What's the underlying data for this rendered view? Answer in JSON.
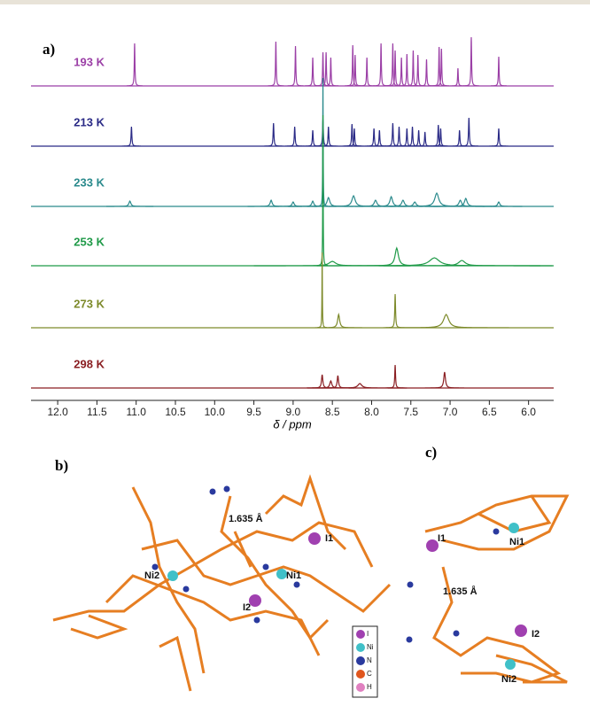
{
  "chart_data": {
    "type": "spectrum",
    "panel_label": "a)",
    "x_label": "δ / ppm",
    "xlim": [
      12.34,
      5.68
    ],
    "xticks": [
      {
        "value": 12,
        "label": "12.0"
      },
      {
        "value": 11.5,
        "label": "11.5"
      },
      {
        "value": 11,
        "label": "11.0"
      },
      {
        "value": 10.5,
        "label": "10.5"
      },
      {
        "value": 10,
        "label": "10.0"
      },
      {
        "value": 9.5,
        "label": "9.5"
      },
      {
        "value": 9,
        "label": "9.0"
      },
      {
        "value": 8.5,
        "label": "8.5"
      },
      {
        "value": 8,
        "label": "8.0"
      },
      {
        "value": 7.5,
        "label": "7.5"
      },
      {
        "value": 7,
        "label": "7.0"
      },
      {
        "value": 6.5,
        "label": "6.5"
      },
      {
        "value": 6,
        "label": "6.0"
      }
    ],
    "series": [
      {
        "name": "193 K",
        "color": "#9b3fa6",
        "peaks": [
          [
            11.02,
            48,
            0.01
          ],
          [
            9.22,
            50,
            0.01
          ],
          [
            8.97,
            45,
            0.01
          ],
          [
            8.75,
            32,
            0.01
          ],
          [
            8.62,
            38,
            0.01
          ],
          [
            8.58,
            38,
            0.01
          ],
          [
            8.52,
            32,
            0.01
          ],
          [
            8.24,
            46,
            0.01
          ],
          [
            8.21,
            35,
            0.01
          ],
          [
            8.06,
            32,
            0.01
          ],
          [
            7.88,
            48,
            0.01
          ],
          [
            7.73,
            48,
            0.01
          ],
          [
            7.7,
            40,
            0.01
          ],
          [
            7.62,
            32,
            0.01
          ],
          [
            7.55,
            36,
            0.01
          ],
          [
            7.47,
            40,
            0.01
          ],
          [
            7.41,
            35,
            0.01
          ],
          [
            7.3,
            30,
            0.01
          ],
          [
            7.14,
            44,
            0.01
          ],
          [
            7.11,
            42,
            0.01
          ],
          [
            6.9,
            20,
            0.01
          ],
          [
            6.73,
            55,
            0.01
          ],
          [
            6.38,
            33,
            0.01
          ]
        ]
      },
      {
        "name": "213 K",
        "color": "#2a2a86",
        "peaks": [
          [
            11.06,
            22,
            0.012
          ],
          [
            9.25,
            26,
            0.012
          ],
          [
            8.98,
            22,
            0.012
          ],
          [
            8.75,
            18,
            0.012
          ],
          [
            8.62,
            30,
            0.012
          ],
          [
            8.55,
            22,
            0.012
          ],
          [
            8.25,
            25,
            0.012
          ],
          [
            8.22,
            20,
            0.012
          ],
          [
            7.97,
            20,
            0.012
          ],
          [
            7.9,
            18,
            0.012
          ],
          [
            7.73,
            26,
            0.012
          ],
          [
            7.65,
            22,
            0.012
          ],
          [
            7.55,
            20,
            0.012
          ],
          [
            7.48,
            22,
            0.012
          ],
          [
            7.4,
            18,
            0.012
          ],
          [
            7.32,
            16,
            0.012
          ],
          [
            7.15,
            24,
            0.012
          ],
          [
            7.12,
            20,
            0.012
          ],
          [
            6.88,
            18,
            0.012
          ],
          [
            6.76,
            32,
            0.012
          ],
          [
            6.38,
            20,
            0.012
          ]
        ]
      },
      {
        "name": "233 K",
        "color": "#2a8a8c",
        "peaks": [
          [
            11.08,
            6,
            0.03
          ],
          [
            9.28,
            7,
            0.03
          ],
          [
            9,
            5,
            0.03
          ],
          [
            8.75,
            6,
            0.03
          ],
          [
            8.62,
            145,
            0.006
          ],
          [
            8.55,
            10,
            0.04
          ],
          [
            8.23,
            12,
            0.05
          ],
          [
            7.95,
            7,
            0.04
          ],
          [
            7.75,
            11,
            0.04
          ],
          [
            7.6,
            7,
            0.04
          ],
          [
            7.45,
            5,
            0.04
          ],
          [
            7.17,
            15,
            0.06
          ],
          [
            6.87,
            7,
            0.04
          ],
          [
            6.8,
            9,
            0.04
          ],
          [
            6.38,
            5,
            0.03
          ]
        ]
      },
      {
        "name": "253 K",
        "color": "#1f9a48",
        "peaks": [
          [
            8.62,
            170,
            0.006
          ],
          [
            8.5,
            5,
            0.1
          ],
          [
            7.68,
            20,
            0.05
          ],
          [
            7.2,
            9,
            0.15
          ],
          [
            6.85,
            6,
            0.1
          ]
        ]
      },
      {
        "name": "273 K",
        "color": "#7d8a2a",
        "peaks": [
          [
            8.63,
            85,
            0.006
          ],
          [
            8.42,
            15,
            0.03
          ],
          [
            7.7,
            38,
            0.012
          ],
          [
            7.05,
            15,
            0.08
          ]
        ]
      },
      {
        "name": "298 K",
        "color": "#8a1e22",
        "peaks": [
          [
            8.63,
            15,
            0.02
          ],
          [
            8.52,
            8,
            0.03
          ],
          [
            8.43,
            14,
            0.02
          ],
          [
            8.15,
            5,
            0.06
          ],
          [
            7.7,
            26,
            0.012
          ],
          [
            7.07,
            18,
            0.025
          ]
        ]
      }
    ]
  },
  "panel_b": {
    "label": "b)",
    "distance": "1.635 Å",
    "atoms": [
      "I1",
      "Ni1",
      "Ni2",
      "I2"
    ]
  },
  "panel_c": {
    "label": "c)",
    "distance": "1.635 Å",
    "atoms": [
      "I1",
      "Ni1",
      "I2",
      "Ni2"
    ]
  },
  "atom_legend": [
    {
      "label": "I",
      "color": "#a040b0"
    },
    {
      "label": "Ni",
      "color": "#40c0c8"
    },
    {
      "label": "N",
      "color": "#2a3a9e"
    },
    {
      "label": "C",
      "color": "#e0561e"
    },
    {
      "label": "H",
      "color": "#e080c0"
    }
  ]
}
